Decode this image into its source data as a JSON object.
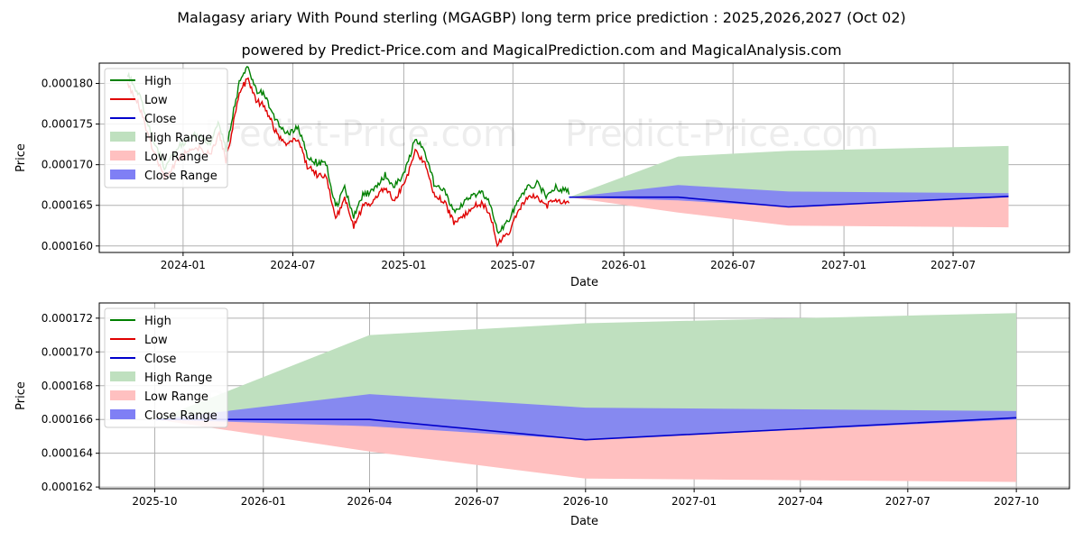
{
  "header": {
    "title": "Malagasy ariary With Pound sterling (MGAGBP) long term price prediction : 2025,2026,2027 (Oct 02)",
    "subtitle": "powered by Predict-Price.com and MagicalPrediction.com and MagicalAnalysis.com"
  },
  "watermark": "Predict-Price.com",
  "colors": {
    "high": "#008000",
    "low": "#e00000",
    "close": "#0000cc",
    "high_range": "#bfe0bf",
    "low_range": "#ffc0c0",
    "close_range": "#7f7ff5",
    "grid": "#b0b0b0"
  },
  "chart_data": [
    {
      "type": "line",
      "name": "historical-and-forecast",
      "xlabel": "Date",
      "ylabel": "Price",
      "x_range": [
        "2023-08-15",
        "2028-01-10"
      ],
      "ylim": [
        0.0001592,
        0.0001825
      ],
      "x_ticks": [
        {
          "date": "2024-01-01",
          "label": "2024-01"
        },
        {
          "date": "2024-07-01",
          "label": "2024-07"
        },
        {
          "date": "2025-01-01",
          "label": "2025-01"
        },
        {
          "date": "2025-07-01",
          "label": "2025-07"
        },
        {
          "date": "2026-01-01",
          "label": "2026-01"
        },
        {
          "date": "2026-07-01",
          "label": "2026-07"
        },
        {
          "date": "2027-01-01",
          "label": "2027-01"
        },
        {
          "date": "2027-07-01",
          "label": "2027-07"
        }
      ],
      "y_ticks": [
        {
          "value": 0.00016,
          "label": "0.000160"
        },
        {
          "value": 0.000165,
          "label": "0.000165"
        },
        {
          "value": 0.00017,
          "label": "0.000170"
        },
        {
          "value": 0.000175,
          "label": "0.000175"
        },
        {
          "value": 0.00018,
          "label": "0.000180"
        }
      ],
      "legend": [
        "High",
        "Low",
        "Close",
        "High Range",
        "Low Range",
        "Close Range"
      ],
      "legend_position": "upper-left",
      "grid": true,
      "history_anchors": [
        [
          "2023-10-01",
          0.0001805
        ],
        [
          "2023-10-20",
          0.000178
        ],
        [
          "2023-11-10",
          0.000173
        ],
        [
          "2023-12-01",
          0.000169
        ],
        [
          "2023-12-25",
          0.0001715
        ],
        [
          "2024-01-20",
          0.000173
        ],
        [
          "2024-02-15",
          0.000172
        ],
        [
          "2024-03-01",
          0.0001745
        ],
        [
          "2024-03-12",
          0.0001712
        ],
        [
          "2024-03-25",
          0.000176
        ],
        [
          "2024-04-05",
          0.00018
        ],
        [
          "2024-04-18",
          0.0001812
        ],
        [
          "2024-05-01",
          0.0001785
        ],
        [
          "2024-05-15",
          0.000178
        ],
        [
          "2024-06-01",
          0.000175
        ],
        [
          "2024-06-20",
          0.000173
        ],
        [
          "2024-07-10",
          0.000174
        ],
        [
          "2024-07-25",
          0.0001705
        ],
        [
          "2024-08-10",
          0.0001695
        ],
        [
          "2024-08-25",
          0.0001695
        ],
        [
          "2024-09-10",
          0.000164
        ],
        [
          "2024-09-25",
          0.0001665
        ],
        [
          "2024-10-10",
          0.000163
        ],
        [
          "2024-10-25",
          0.0001655
        ],
        [
          "2024-11-10",
          0.000166
        ],
        [
          "2024-12-01",
          0.000168
        ],
        [
          "2024-12-15",
          0.0001665
        ],
        [
          "2025-01-01",
          0.000168
        ],
        [
          "2025-01-20",
          0.0001725
        ],
        [
          "2025-02-05",
          0.000171
        ],
        [
          "2025-02-20",
          0.000167
        ],
        [
          "2025-03-10",
          0.000166
        ],
        [
          "2025-03-25",
          0.0001635
        ],
        [
          "2025-04-10",
          0.0001645
        ],
        [
          "2025-04-25",
          0.0001655
        ],
        [
          "2025-05-10",
          0.000166
        ],
        [
          "2025-05-25",
          0.0001645
        ],
        [
          "2025-06-05",
          0.000161
        ],
        [
          "2025-06-25",
          0.0001625
        ],
        [
          "2025-07-10",
          0.000165
        ],
        [
          "2025-07-25",
          0.0001665
        ],
        [
          "2025-08-10",
          0.000167
        ],
        [
          "2025-08-25",
          0.0001655
        ],
        [
          "2025-09-10",
          0.0001665
        ],
        [
          "2025-10-02",
          0.000166
        ]
      ],
      "forecast": {
        "dates": [
          "2025-10-02",
          "2026-04-01",
          "2026-10-01",
          "2027-10-01"
        ],
        "close": [
          0.000166,
          0.000166,
          0.0001648,
          0.0001661
        ],
        "high_range": [
          0.000166,
          0.000171,
          0.0001717,
          0.0001723
        ],
        "low_range": [
          0.000166,
          0.0001641,
          0.0001625,
          0.0001623
        ],
        "close_range_upper": [
          0.000166,
          0.0001675,
          0.0001667,
          0.0001665
        ],
        "close_range_lower": [
          0.000166,
          0.0001656,
          0.0001648,
          0.000166
        ]
      }
    },
    {
      "type": "area",
      "name": "forecast-detail",
      "xlabel": "Date",
      "ylabel": "Price",
      "x_range": [
        "2025-08-15",
        "2027-11-15"
      ],
      "ylim": [
        0.0001619,
        0.0001729
      ],
      "x_ticks": [
        {
          "date": "2025-10-01",
          "label": "2025-10"
        },
        {
          "date": "2026-01-01",
          "label": "2026-01"
        },
        {
          "date": "2026-04-01",
          "label": "2026-04"
        },
        {
          "date": "2026-07-01",
          "label": "2026-07"
        },
        {
          "date": "2026-10-01",
          "label": "2026-10"
        },
        {
          "date": "2027-01-01",
          "label": "2027-01"
        },
        {
          "date": "2027-04-01",
          "label": "2027-04"
        },
        {
          "date": "2027-07-01",
          "label": "2027-07"
        },
        {
          "date": "2027-10-01",
          "label": "2027-10"
        }
      ],
      "y_ticks": [
        {
          "value": 0.000162,
          "label": "0.000162"
        },
        {
          "value": 0.000164,
          "label": "0.000164"
        },
        {
          "value": 0.000166,
          "label": "0.000166"
        },
        {
          "value": 0.000168,
          "label": "0.000168"
        },
        {
          "value": 0.00017,
          "label": "0.000170"
        },
        {
          "value": 0.000172,
          "label": "0.000172"
        }
      ],
      "legend": [
        "High",
        "Low",
        "Close",
        "High Range",
        "Low Range",
        "Close Range"
      ],
      "legend_position": "upper-left",
      "grid": true,
      "forecast": {
        "dates": [
          "2025-10-02",
          "2026-04-01",
          "2026-10-01",
          "2027-10-01"
        ],
        "close": [
          0.000166,
          0.000166,
          0.0001648,
          0.0001661
        ],
        "high_range": [
          0.000166,
          0.000171,
          0.0001717,
          0.0001723
        ],
        "low_range": [
          0.000166,
          0.0001641,
          0.0001625,
          0.0001623
        ],
        "close_range_upper": [
          0.000166,
          0.0001675,
          0.0001667,
          0.0001665
        ],
        "close_range_lower": [
          0.000166,
          0.0001656,
          0.0001648,
          0.000166
        ]
      }
    }
  ]
}
